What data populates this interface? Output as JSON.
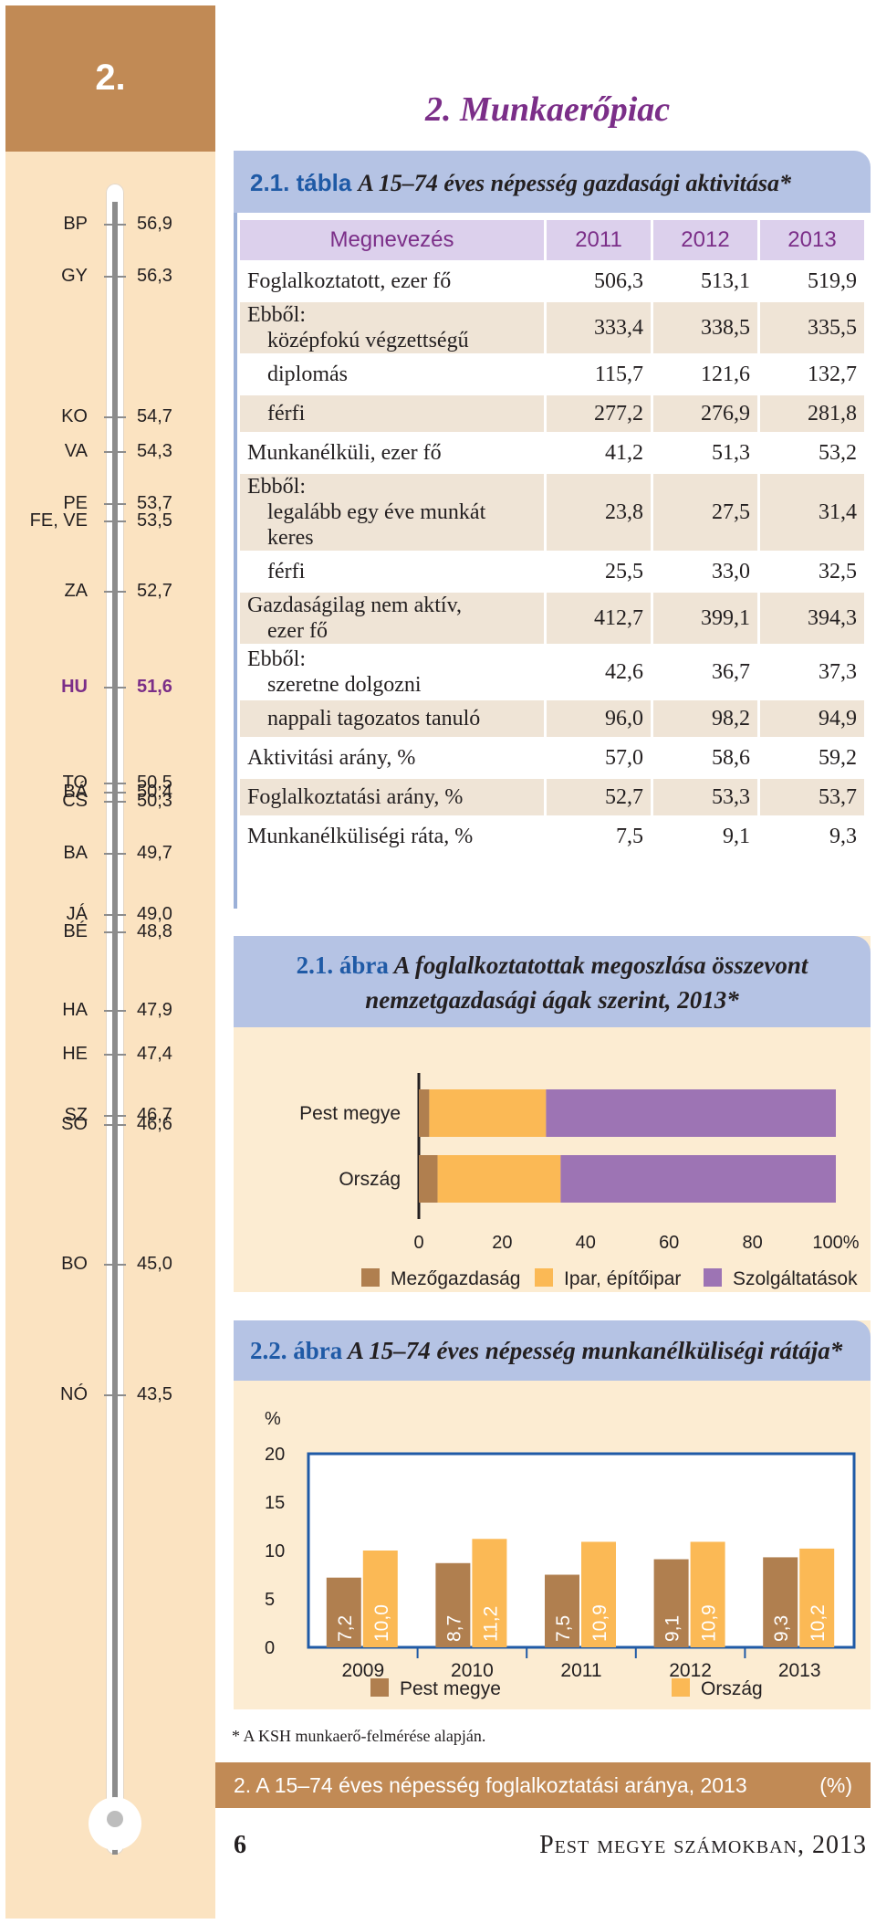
{
  "chapter": {
    "number": "2.",
    "title": "2. Munkaerőpiac"
  },
  "thermometer": {
    "highlight_code": "HU",
    "items": [
      {
        "code": "BP",
        "value": "56,9"
      },
      {
        "code": "GY",
        "value": "56,3"
      },
      {
        "code": "KO",
        "value": "54,7"
      },
      {
        "code": "VA",
        "value": "54,3"
      },
      {
        "code": "PE",
        "value": "53,7"
      },
      {
        "code": "FE, VE",
        "value": "53,5"
      },
      {
        "code": "ZA",
        "value": "52,7"
      },
      {
        "code": "HU",
        "value": "51,6"
      },
      {
        "code": "TO",
        "value": "50,5"
      },
      {
        "code": "BÁ",
        "value": "50,4"
      },
      {
        "code": "CS",
        "value": "50,3"
      },
      {
        "code": "BA",
        "value": "49,7"
      },
      {
        "code": "JÁ",
        "value": "49,0"
      },
      {
        "code": "BÉ",
        "value": "48,8"
      },
      {
        "code": "HA",
        "value": "47,9"
      },
      {
        "code": "HE",
        "value": "47,4"
      },
      {
        "code": "SZ",
        "value": "46,7"
      },
      {
        "code": "SO",
        "value": "46,6"
      },
      {
        "code": "BO",
        "value": "45,0"
      },
      {
        "code": "NÓ",
        "value": "43,5"
      }
    ]
  },
  "table": {
    "label": "2.1. tábla",
    "title": "A 15–74 éves népesség gazdasági aktivitása*",
    "headers": [
      "Megnevezés",
      "2011",
      "2012",
      "2013"
    ],
    "rows": [
      {
        "name": "Foglalkoztatott, ezer fő",
        "values": [
          "506,3",
          "513,1",
          "519,9"
        ]
      },
      {
        "name_a": "Ebből:",
        "name_b": "középfokú végzettségű",
        "values": [
          "333,4",
          "338,5",
          "335,5"
        ]
      },
      {
        "name": "diplomás",
        "values": [
          "115,7",
          "121,6",
          "132,7"
        ]
      },
      {
        "name": "férfi",
        "values": [
          "277,2",
          "276,9",
          "281,8"
        ]
      },
      {
        "name": "Munkanélküli, ezer fő",
        "values": [
          "41,2",
          "51,3",
          "53,2"
        ]
      },
      {
        "name_a": "Ebből:",
        "name_b": "legalább egy éve munkát",
        "name_c": "keres",
        "values": [
          "23,8",
          "27,5",
          "31,4"
        ]
      },
      {
        "name": "férfi",
        "values": [
          "25,5",
          "33,0",
          "32,5"
        ]
      },
      {
        "name_a": "Gazdaságilag nem aktív,",
        "name_b": "ezer fő",
        "values": [
          "412,7",
          "399,1",
          "394,3"
        ]
      },
      {
        "name_a": "Ebből:",
        "name_b": "szeretne dolgozni",
        "values": [
          "42,6",
          "36,7",
          "37,3"
        ]
      },
      {
        "name": "nappali tagozatos tanuló",
        "values": [
          "96,0",
          "98,2",
          "94,9"
        ]
      },
      {
        "name": "Aktivitási arány, %",
        "values": [
          "57,0",
          "58,6",
          "59,2"
        ]
      },
      {
        "name": "Foglalkoztatási arány, %",
        "values": [
          "52,7",
          "53,3",
          "53,7"
        ]
      },
      {
        "name": "Munkanélküliségi ráta, %",
        "values": [
          "7,5",
          "9,1",
          "9,3"
        ]
      }
    ]
  },
  "chart_data": [
    {
      "type": "bar",
      "orientation": "horizontal",
      "stacked": true,
      "label": "2.1. ábra",
      "title_line1": "A foglalkoztatottak megoszlása összevont",
      "title_line2": "nemzetgazdasági ágak szerint, 2013*",
      "categories": [
        "Pest megye",
        "Ország"
      ],
      "series": [
        {
          "name": "Mezőgazdaság",
          "color": "#b07f4f",
          "values": [
            2.5,
            4.5
          ]
        },
        {
          "name": "Ipar, építőipar",
          "color": "#fbb955",
          "values": [
            28.0,
            29.5
          ]
        },
        {
          "name": "Szolgáltatások",
          "color": "#9d74b4",
          "values": [
            69.5,
            66.0
          ]
        }
      ],
      "xlim": [
        0,
        100
      ],
      "xticks": [
        "0",
        "20",
        "40",
        "60",
        "80",
        "100%"
      ]
    },
    {
      "type": "bar",
      "orientation": "vertical",
      "label": "2.2. ábra",
      "title": "A 15–74 éves népesség munkanélküliségi rátája*",
      "ylabel": "%",
      "ylim": [
        0,
        20
      ],
      "yticks": [
        "0",
        "5",
        "10",
        "15",
        "20"
      ],
      "categories": [
        "2009",
        "2010",
        "2011",
        "2012",
        "2013"
      ],
      "series": [
        {
          "name": "Pest megye",
          "color": "#b07f4f",
          "values": [
            7.2,
            8.7,
            7.5,
            9.1,
            9.3
          ],
          "labels": [
            "7,2",
            "8,7",
            "7,5",
            "9,1",
            "9,3"
          ]
        },
        {
          "name": "Ország",
          "color": "#fbb955",
          "values": [
            10.0,
            11.2,
            10.9,
            10.9,
            10.2
          ],
          "labels": [
            "10,0",
            "11,2",
            "10,9",
            "10,9",
            "10,2"
          ]
        }
      ]
    }
  ],
  "footnote": "* A KSH munkaerő-felmérése alapján.",
  "bottom_bar": {
    "text": "2. A 15–74 éves népesség foglalkoztatási aránya, 2013",
    "unit": "(%)"
  },
  "footer": {
    "page_number": "6",
    "publication": "Pest megye számokban, 2013"
  }
}
